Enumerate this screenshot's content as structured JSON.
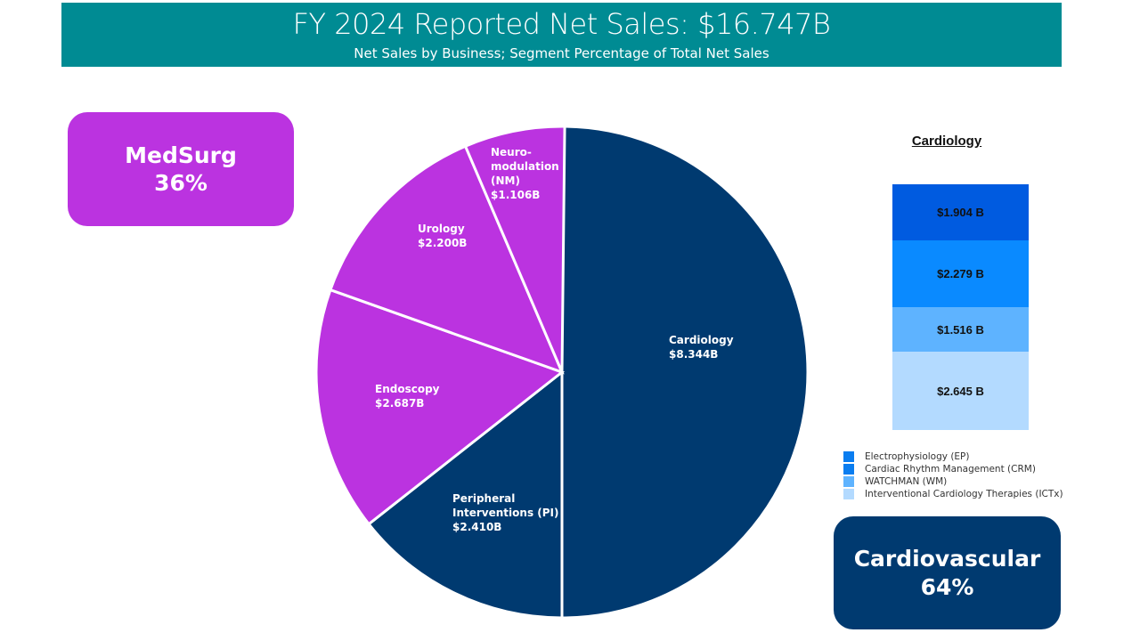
{
  "header": {
    "title": "FY 2024 Reported Net Sales: $16.747B",
    "subtitle": "Net Sales by Business; Segment Percentage of Total Net Sales"
  },
  "groups": {
    "medsurg": {
      "name": "MedSurg",
      "percent": "36%",
      "color": "#bb33e0"
    },
    "cardiovascular": {
      "name": "Cardiovascular",
      "percent": "64%",
      "color": "#003a70"
    }
  },
  "chart_data": [
    {
      "type": "pie",
      "title": "FY 2024 Reported Net Sales: $16.747B",
      "subtitle": "Net Sales by Business; Segment Percentage of Total Net Sales",
      "unit": "$B",
      "total": 16.747,
      "slices": [
        {
          "name": "Cardiology",
          "label_lines": [
            "Cardiology",
            "$8.344B"
          ],
          "value": 8.344,
          "group": "Cardiovascular",
          "color": "#003a70"
        },
        {
          "name": "Peripheral Interventions (PI)",
          "label_lines": [
            "Peripheral",
            "Interventions (PI)",
            "$2.410B"
          ],
          "value": 2.41,
          "group": "Cardiovascular",
          "color": "#003a70"
        },
        {
          "name": "Endoscopy",
          "label_lines": [
            "Endoscopy",
            "$2.687B"
          ],
          "value": 2.687,
          "group": "MedSurg",
          "color": "#bb33e0"
        },
        {
          "name": "Urology",
          "label_lines": [
            "Urology",
            "$2.200B"
          ],
          "value": 2.2,
          "group": "MedSurg",
          "color": "#bb33e0"
        },
        {
          "name": "Neuromodulation (NM)",
          "label_lines": [
            "Neuro-",
            "modulation",
            "(NM)",
            "$1.106B"
          ],
          "value": 1.106,
          "group": "MedSurg",
          "color": "#bb33e0"
        }
      ],
      "start": "12 o'clock",
      "direction": "clockwise"
    },
    {
      "type": "bar",
      "stacked": true,
      "title": "Cardiology",
      "unit": "$B",
      "series": [
        {
          "name": "Electrophysiology (EP)",
          "value": 1.904,
          "label": "$1.904 B",
          "color": "#005be0"
        },
        {
          "name": "Cardiac Rhythm Management (CRM)",
          "value": 2.279,
          "label": "$2.279 B",
          "color": "#0a8aff"
        },
        {
          "name": "WATCHMAN (WM)",
          "value": 1.516,
          "label": "$1.516 B",
          "color": "#5eb3ff"
        },
        {
          "name": "Interventional Cardiology Therapies (ICTx)",
          "value": 2.645,
          "label": "$2.645 B",
          "color": "#b3daff"
        }
      ],
      "legend": {
        "position": "bottom",
        "items": [
          {
            "label": "Electrophysiology (EP)",
            "color": "#0a7df0"
          },
          {
            "label": "Cardiac Rhythm Management (CRM)",
            "color": "#0a7df0"
          },
          {
            "label": "WATCHMAN (WM)",
            "color": "#5eb3ff"
          },
          {
            "label": "Interventional Cardiology Therapies (ICTx)",
            "color": "#b3daff"
          }
        ]
      }
    }
  ]
}
